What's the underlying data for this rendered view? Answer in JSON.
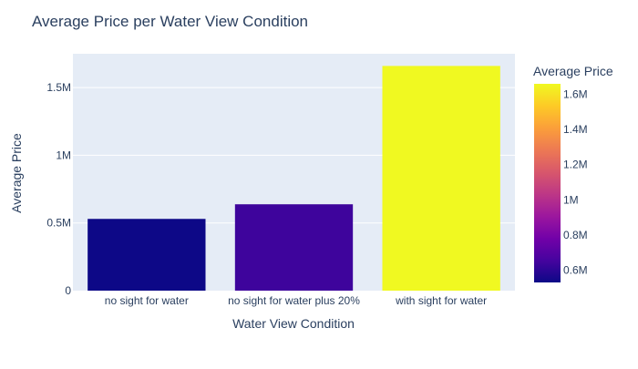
{
  "chart_data": {
    "type": "bar",
    "title": "Average Price per Water View Condition",
    "xlabel": "Water View Condition",
    "ylabel": "Average Price",
    "categories": [
      "no sight for water",
      "no sight for water plus 20%",
      "with sight for water"
    ],
    "values": [
      530000,
      638000,
      1660000
    ],
    "ylim": [
      0,
      1750000
    ],
    "yticks": [
      {
        "value": 0,
        "label": "0"
      },
      {
        "value": 500000,
        "label": "0.5M"
      },
      {
        "value": 1000000,
        "label": "1M"
      },
      {
        "value": 1500000,
        "label": "1.5M"
      }
    ],
    "grid": true,
    "colorbar": {
      "title": "Average Price",
      "range": [
        530000,
        1660000
      ],
      "ticks": [
        {
          "value": 600000,
          "label": "0.6M"
        },
        {
          "value": 800000,
          "label": "0.8M"
        },
        {
          "value": 1000000,
          "label": "1M"
        },
        {
          "value": 1200000,
          "label": "1.2M"
        },
        {
          "value": 1400000,
          "label": "1.4M"
        },
        {
          "value": 1600000,
          "label": "1.6M"
        }
      ],
      "colorscale": [
        "#0d0887",
        "#46039f",
        "#7201a8",
        "#9c179e",
        "#bd3786",
        "#d8576b",
        "#ed7953",
        "#fb9f3a",
        "#fdca26",
        "#f0f921"
      ]
    },
    "colors": {
      "plot_bg": "#e5ecf6",
      "grid": "#ffffff",
      "text": "#2a3f5f"
    }
  }
}
